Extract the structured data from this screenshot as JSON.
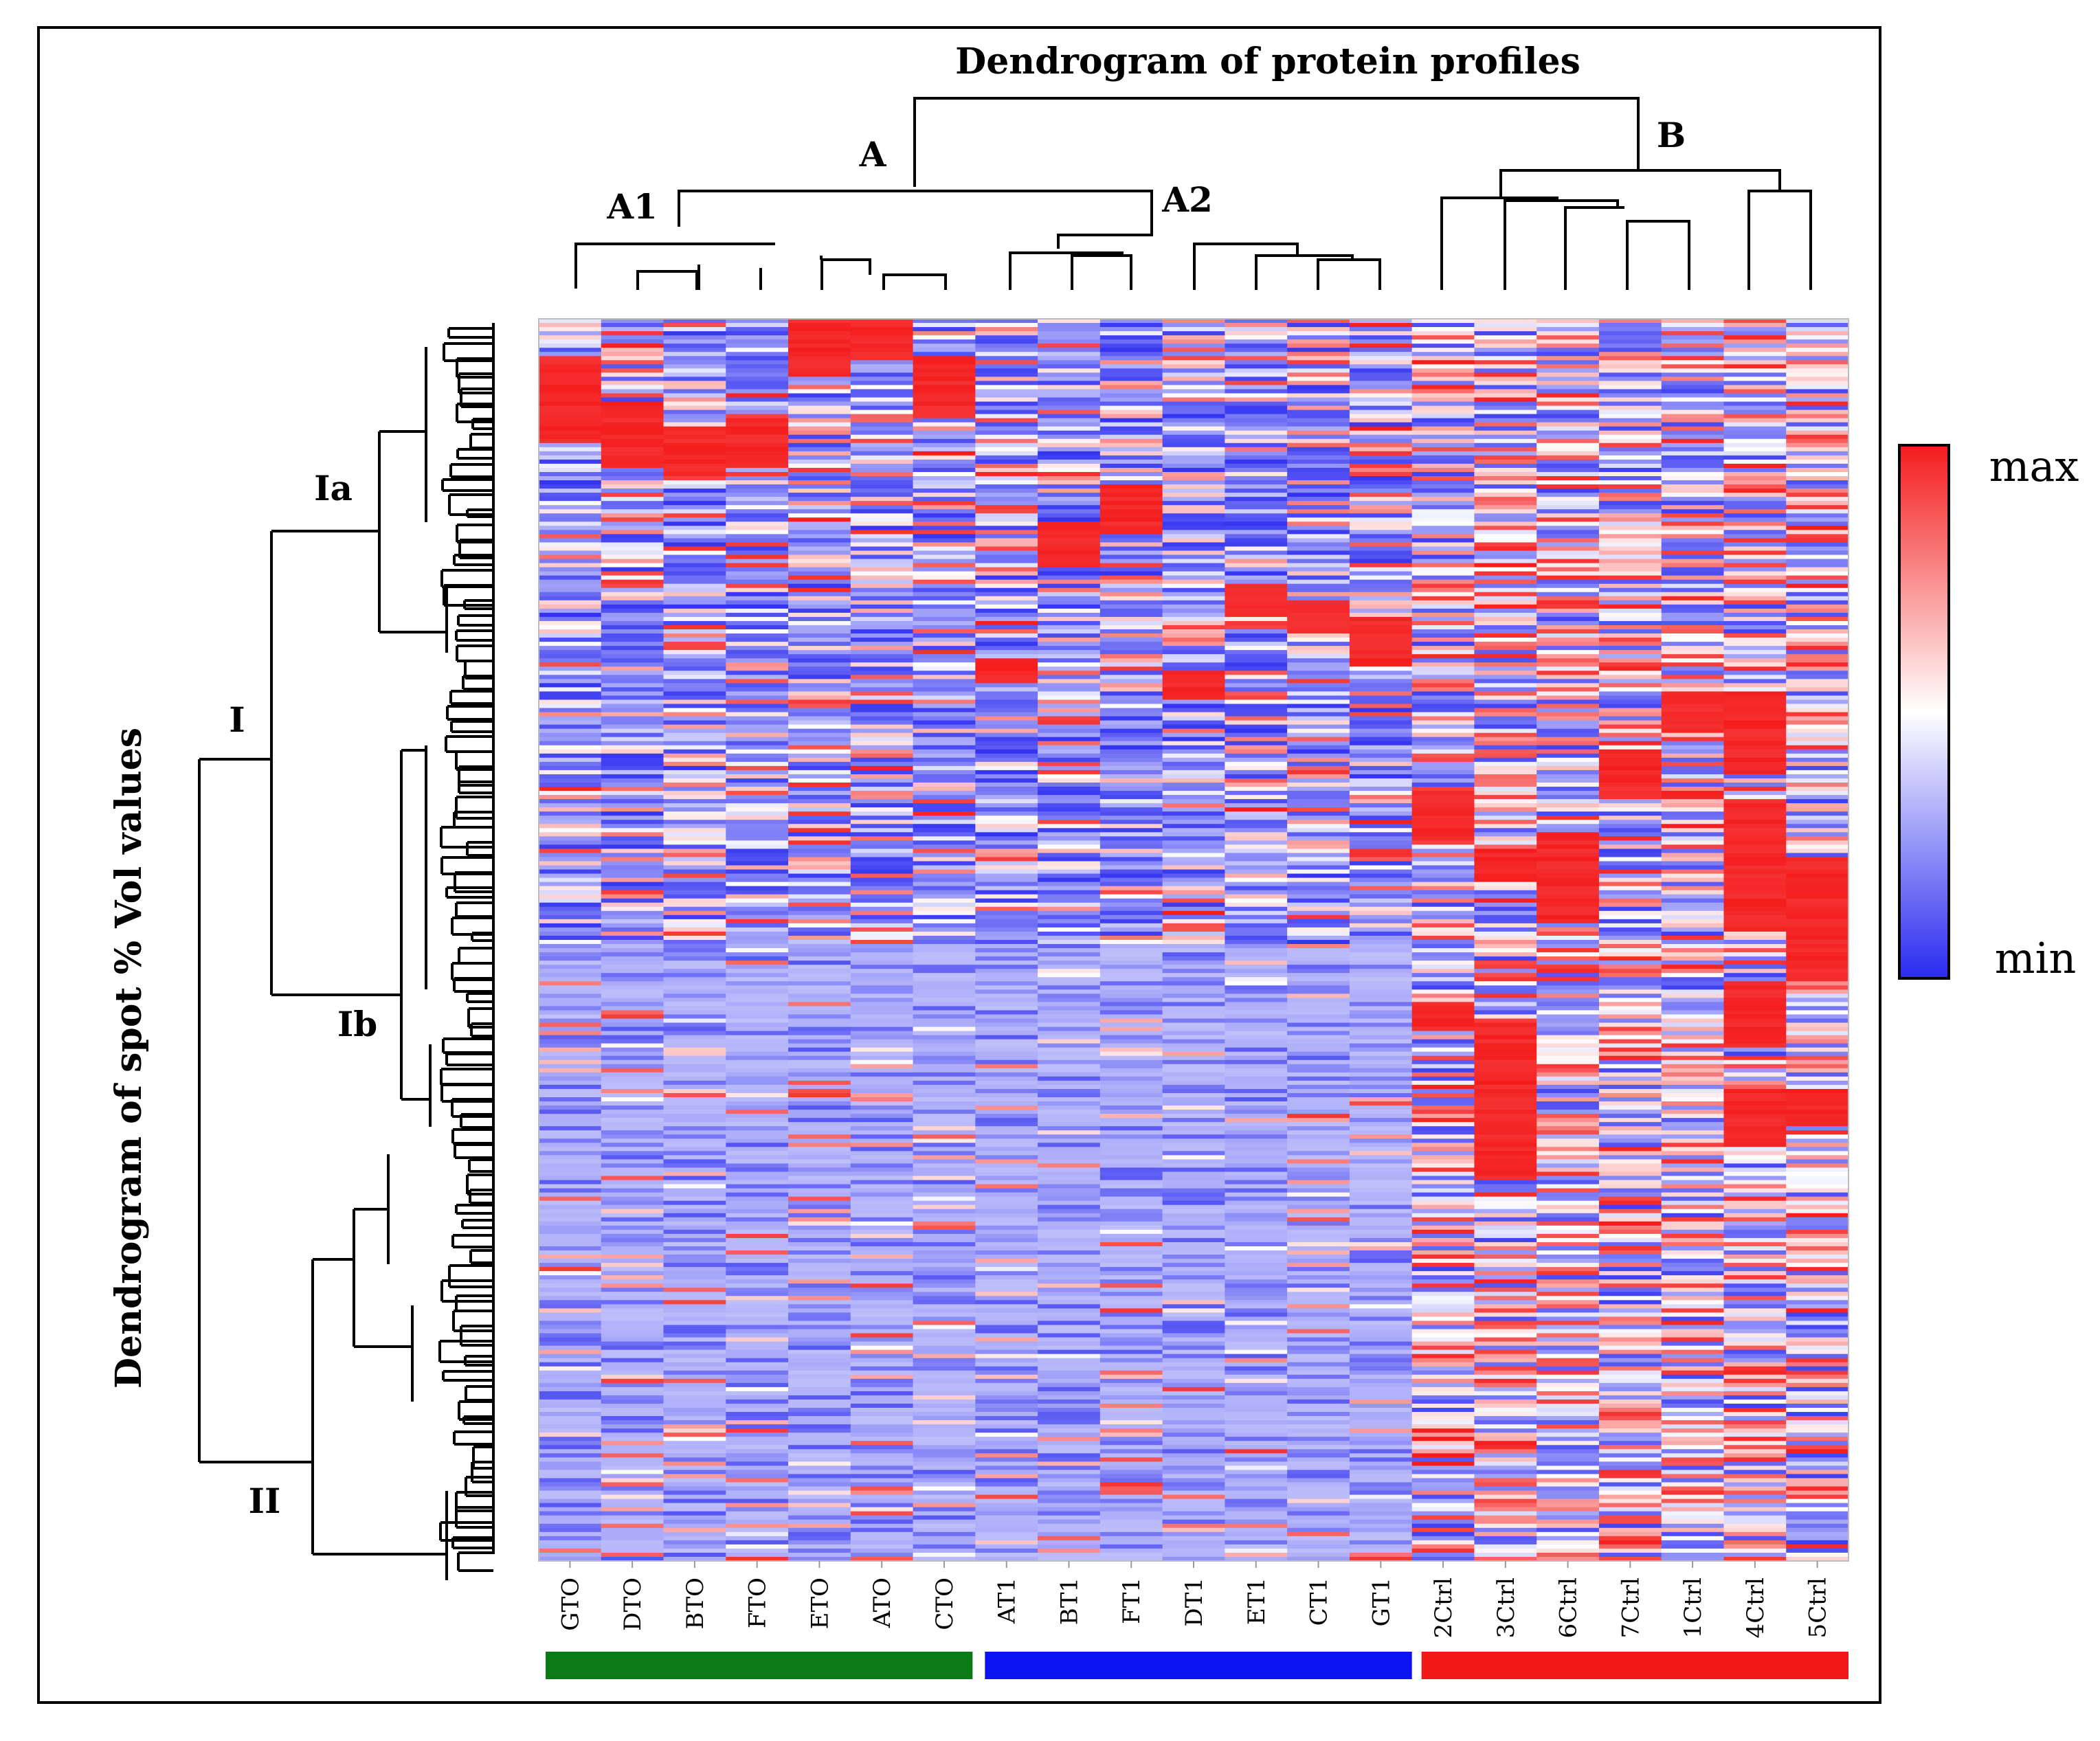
{
  "chart_data": {
    "type": "heatmap",
    "title": "Dendrogram of protein profiles",
    "ylabel": "Dendrogram of spot % Vol values",
    "columns": [
      "GTO",
      "DTO",
      "BTO",
      "FTO",
      "ETO",
      "ATO",
      "CTO",
      "AT1",
      "BT1",
      "FT1",
      "DT1",
      "ET1",
      "CT1",
      "GT1",
      "2Ctrl",
      "3Ctrl",
      "6Ctrl",
      "7Ctrl",
      "1Ctrl",
      "4Ctrl",
      "5Ctrl"
    ],
    "column_groups": [
      {
        "columns": [
          "GTO",
          "DTO",
          "BTO",
          "FTO",
          "ETO",
          "ATO",
          "CTO"
        ],
        "color": "#0a7a14"
      },
      {
        "columns": [
          "AT1",
          "BT1",
          "FT1",
          "DT1",
          "ET1",
          "CT1",
          "GT1"
        ],
        "color": "#0b13f0"
      },
      {
        "columns": [
          "2Ctrl",
          "3Ctrl",
          "6Ctrl",
          "7Ctrl",
          "1Ctrl",
          "4Ctrl",
          "5Ctrl"
        ],
        "color": "#f01818"
      }
    ],
    "column_clusters": [
      "A",
      "A1",
      "A2",
      "B"
    ],
    "row_clusters": [
      "I",
      "Ia",
      "Ib",
      "II"
    ],
    "colorscale": {
      "max_label": "max",
      "min_label": "min",
      "max_color": "#f41c1c",
      "mid_color": "#ffffff",
      "min_color": "#2a2af0"
    }
  }
}
